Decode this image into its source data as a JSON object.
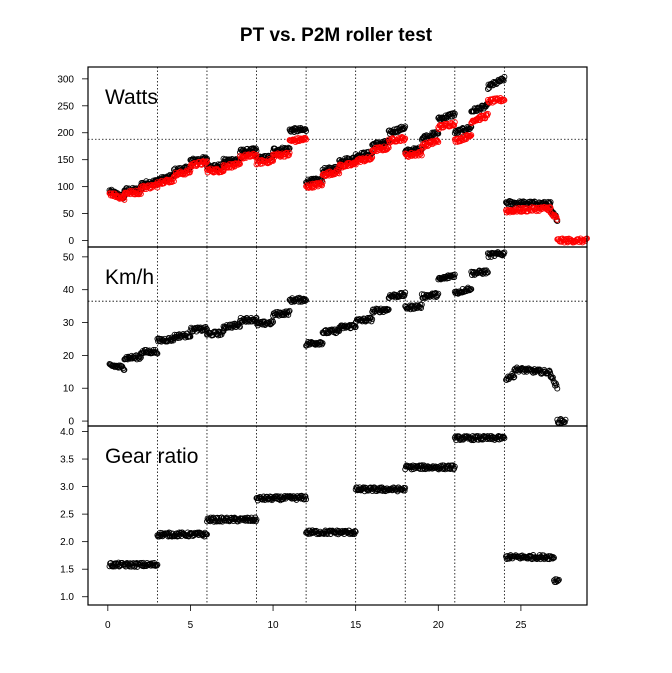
{
  "chart_data": {
    "type": "scatter",
    "title": "PT vs. P2M roller test",
    "colors": {
      "pt": "#ff0000",
      "p2m": "#000000"
    },
    "xlim": [
      -1.2,
      29
    ],
    "x_ticks": [
      0,
      5,
      10,
      15,
      20,
      25
    ],
    "x_tick_labels": [
      "0",
      "5",
      "10",
      "15",
      "20",
      "25"
    ],
    "vertical_reference_lines": [
      3,
      6,
      9,
      12,
      15,
      18,
      21,
      24
    ],
    "panels": [
      {
        "label": "Watts",
        "ylim": [
          -12,
          322
        ],
        "y_ticks": [
          0,
          50,
          100,
          150,
          200,
          250,
          300
        ],
        "y_tick_labels": [
          "0",
          "50",
          "100",
          "150",
          "200",
          "250",
          "300"
        ],
        "horizontal_reference_line": 188,
        "series": [
          {
            "color": "black",
            "segments": [
              [
                0.1,
                1.0,
                92,
                80
              ],
              [
                1.0,
                2.0,
                94,
                94
              ],
              [
                2.0,
                3.0,
                105,
                110
              ],
              [
                3.0,
                4.0,
                112,
                120
              ],
              [
                4.0,
                5.0,
                130,
                135
              ],
              [
                5.0,
                6.0,
                148,
                152
              ],
              [
                6.0,
                7.0,
                138,
                138
              ],
              [
                7.0,
                8.0,
                148,
                150
              ],
              [
                8.0,
                9.0,
                165,
                168
              ],
              [
                9.0,
                10.0,
                152,
                155
              ],
              [
                10.0,
                11.0,
                168,
                170
              ],
              [
                11.0,
                12.0,
                205,
                205
              ],
              [
                12.0,
                13.0,
                110,
                112
              ],
              [
                13.0,
                14.0,
                130,
                135
              ],
              [
                14.0,
                15.0,
                148,
                152
              ],
              [
                15.0,
                16.0,
                158,
                162
              ],
              [
                16.0,
                17.0,
                178,
                182
              ],
              [
                17.0,
                18.0,
                200,
                210
              ],
              [
                18.0,
                19.0,
                165,
                170
              ],
              [
                19.0,
                20.0,
                190,
                200
              ],
              [
                20.0,
                21.0,
                225,
                235
              ],
              [
                21.0,
                22.0,
                200,
                210
              ],
              [
                22.0,
                23.0,
                240,
                250
              ],
              [
                23.0,
                24.0,
                285,
                300
              ],
              [
                24.1,
                26.8,
                70,
                68
              ],
              [
                26.8,
                27.2,
                55,
                40
              ]
            ]
          },
          {
            "color": "red",
            "segments": [
              [
                0.1,
                1.0,
                88,
                78
              ],
              [
                1.0,
                2.0,
                88,
                90
              ],
              [
                2.0,
                3.0,
                98,
                102
              ],
              [
                3.0,
                4.0,
                108,
                112
              ],
              [
                4.0,
                5.0,
                122,
                128
              ],
              [
                5.0,
                6.0,
                140,
                145
              ],
              [
                6.0,
                7.0,
                130,
                130
              ],
              [
                7.0,
                8.0,
                138,
                140
              ],
              [
                8.0,
                9.0,
                155,
                158
              ],
              [
                9.0,
                10.0,
                145,
                148
              ],
              [
                10.0,
                11.0,
                158,
                160
              ],
              [
                11.0,
                12.0,
                185,
                188
              ],
              [
                12.0,
                13.0,
                100,
                105
              ],
              [
                13.0,
                14.0,
                122,
                128
              ],
              [
                14.0,
                15.0,
                138,
                142
              ],
              [
                15.0,
                16.0,
                148,
                152
              ],
              [
                16.0,
                17.0,
                168,
                172
              ],
              [
                17.0,
                18.0,
                185,
                190
              ],
              [
                18.0,
                19.0,
                158,
                162
              ],
              [
                19.0,
                20.0,
                175,
                185
              ],
              [
                20.0,
                21.0,
                210,
                218
              ],
              [
                21.0,
                22.0,
                185,
                195
              ],
              [
                22.0,
                23.0,
                222,
                232
              ],
              [
                23.0,
                24.0,
                258,
                262
              ],
              [
                24.1,
                26.8,
                55,
                60
              ],
              [
                26.8,
                27.2,
                50,
                40
              ],
              [
                27.2,
                29.0,
                0,
                0
              ]
            ]
          }
        ]
      },
      {
        "label": "Km/h",
        "ylim": [
          -1.5,
          53
        ],
        "y_ticks": [
          0,
          10,
          20,
          30,
          40,
          50
        ],
        "y_tick_labels": [
          "0",
          "10",
          "20",
          "30",
          "40",
          "50"
        ],
        "horizontal_reference_line": 36.5,
        "series": [
          {
            "color": "black",
            "segments": [
              [
                0.1,
                1.0,
                17,
                16.2
              ],
              [
                1.0,
                2.0,
                19.2,
                19.5
              ],
              [
                2.0,
                3.0,
                21,
                21.2
              ],
              [
                3.0,
                4.0,
                24.5,
                25
              ],
              [
                4.0,
                5.0,
                25.8,
                26.2
              ],
              [
                5.0,
                6.0,
                27.8,
                28
              ],
              [
                6.0,
                7.0,
                26.5,
                26.8
              ],
              [
                7.0,
                8.0,
                28.8,
                29.2
              ],
              [
                8.0,
                9.0,
                30.8,
                31
              ],
              [
                9.0,
                10.0,
                29.5,
                30
              ],
              [
                10.0,
                11.0,
                32.5,
                33
              ],
              [
                11.0,
                12.0,
                36.8,
                37
              ],
              [
                12.0,
                13.0,
                23.5,
                24
              ],
              [
                13.0,
                14.0,
                27,
                27.5
              ],
              [
                14.0,
                15.0,
                28.5,
                29
              ],
              [
                15.0,
                16.0,
                30.5,
                31
              ],
              [
                16.0,
                17.0,
                33.5,
                34
              ],
              [
                17.0,
                18.0,
                38,
                38.5
              ],
              [
                18.0,
                19.0,
                34.5,
                35
              ],
              [
                19.0,
                20.0,
                38,
                38.5
              ],
              [
                20.0,
                21.0,
                43,
                44.5
              ],
              [
                21.0,
                22.0,
                39,
                40.5
              ],
              [
                22.0,
                23.0,
                45,
                45.5
              ],
              [
                23.0,
                24.0,
                50.5,
                51
              ],
              [
                24.1,
                24.6,
                13,
                14
              ],
              [
                24.6,
                26.8,
                15.8,
                14.8
              ],
              [
                26.8,
                27.2,
                14,
                10
              ],
              [
                27.2,
                27.7,
                0,
                0
              ]
            ]
          }
        ]
      },
      {
        "label": "Gear ratio",
        "ylim": [
          0.85,
          4.1
        ],
        "y_ticks": [
          1.0,
          1.5,
          2.0,
          2.5,
          3.0,
          3.5,
          4.0
        ],
        "y_tick_labels": [
          "1.0",
          "1.5",
          "2.0",
          "2.5",
          "3.0",
          "3.5",
          "4.0"
        ],
        "horizontal_reference_line": null,
        "series": [
          {
            "color": "black",
            "segments": [
              [
                0.1,
                3.0,
                1.58,
                1.58
              ],
              [
                3.0,
                6.0,
                2.13,
                2.13
              ],
              [
                6.0,
                9.0,
                2.4,
                2.4
              ],
              [
                9.0,
                12.0,
                2.78,
                2.8
              ],
              [
                12.0,
                15.0,
                2.17,
                2.17
              ],
              [
                15.0,
                18.0,
                2.95,
                2.95
              ],
              [
                18.0,
                21.0,
                3.35,
                3.35
              ],
              [
                21.0,
                24.0,
                3.88,
                3.88
              ],
              [
                24.1,
                27.0,
                1.72,
                1.72
              ],
              [
                27.0,
                27.3,
                1.3,
                1.3
              ]
            ]
          }
        ]
      }
    ]
  }
}
